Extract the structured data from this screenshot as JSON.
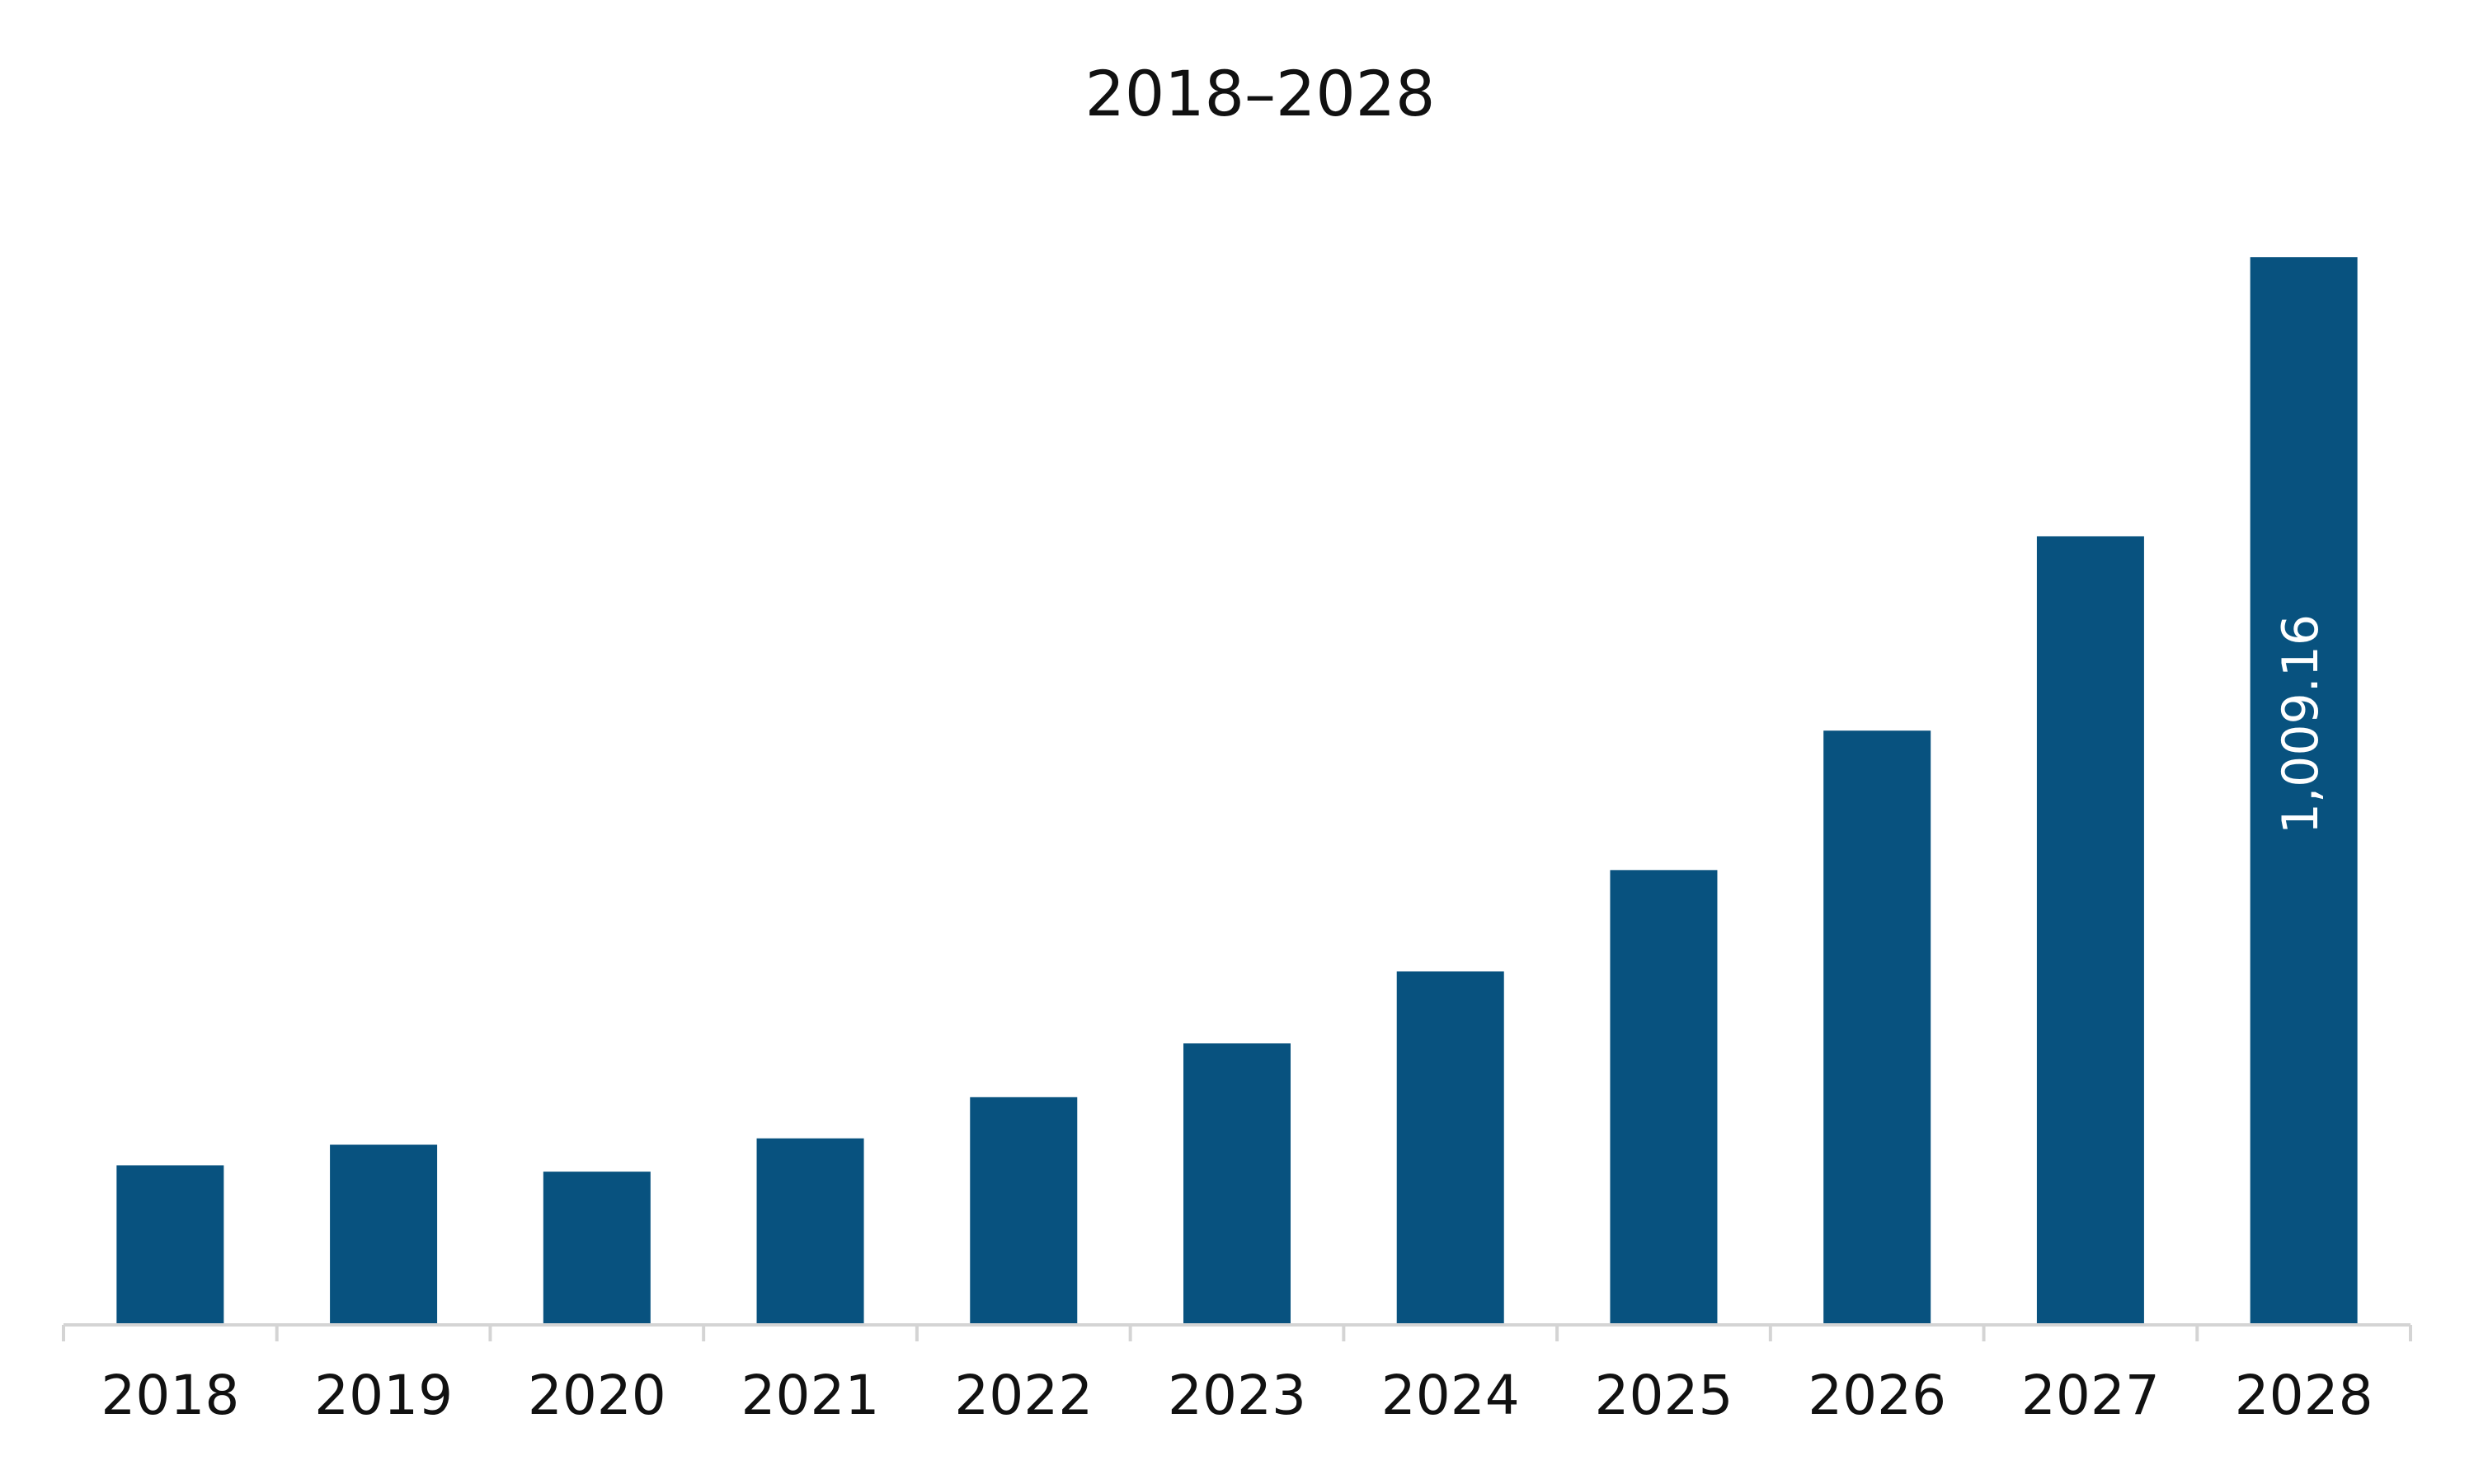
{
  "chart_data": {
    "type": "bar",
    "title": "2018–2028",
    "categories": [
      "2018",
      "2019",
      "2020",
      "2021",
      "2022",
      "2023",
      "2024",
      "2025",
      "2026",
      "2027",
      "2028"
    ],
    "values": [
      149.5,
      169,
      143.5,
      175,
      214,
      265,
      333,
      429,
      561,
      745,
      1009.16
    ],
    "value_labels": [
      null,
      null,
      null,
      null,
      null,
      null,
      null,
      null,
      null,
      null,
      "1,009.16"
    ],
    "color": "#08527f"
  }
}
